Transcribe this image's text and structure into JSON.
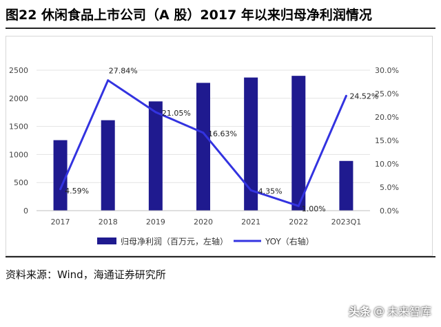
{
  "title": "图22 休闲食品上市公司（A 股）2017 年以来归母净利润情况",
  "source": "资料来源：Wind，海通证券研究所",
  "watermark": {
    "platform": "头条",
    "separator": "@",
    "account": "未来智库"
  },
  "colors": {
    "bar": "#1f1a8f",
    "line": "#3333e0",
    "grid": "#e3e3e3",
    "axis_text": "#444444"
  },
  "chart_data": {
    "type": "bar+line",
    "categories": [
      "2017",
      "2018",
      "2019",
      "2020",
      "2021",
      "2022",
      "2023Q1"
    ],
    "series": [
      {
        "name": "归母净利润（百万元，左轴）",
        "type": "bar",
        "axis": "left",
        "values": [
          1255,
          1610,
          1945,
          2275,
          2370,
          2400,
          885
        ]
      },
      {
        "name": "YOY（右轴）",
        "type": "line",
        "axis": "right",
        "values": [
          4.59,
          27.84,
          21.05,
          16.63,
          4.35,
          1.0,
          24.52
        ],
        "labels": [
          "4.59%",
          "27.84%",
          "21.05%",
          "16.63%",
          "4.35%",
          "1.00%",
          "24.52%"
        ]
      }
    ],
    "left_axis": {
      "ylim": [
        0,
        2500
      ],
      "ticks": [
        "0",
        "500",
        "1000",
        "1500",
        "2000",
        "2500"
      ]
    },
    "right_axis": {
      "ylim": [
        0,
        30
      ],
      "ticks": [
        "0.0%",
        "5.0%",
        "10.0%",
        "15.0%",
        "20.0%",
        "25.0%",
        "30.0%"
      ]
    },
    "grid": true,
    "legend_position": "bottom"
  }
}
